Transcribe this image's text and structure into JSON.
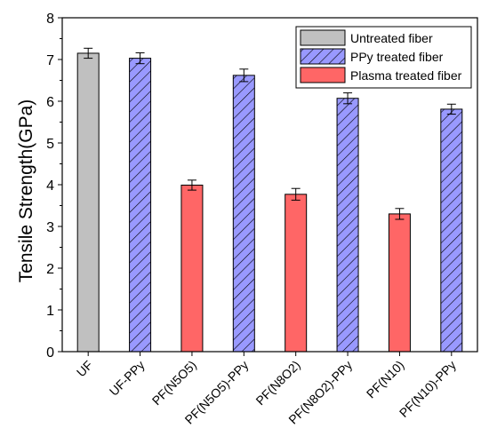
{
  "chart_data": {
    "type": "bar",
    "ylabel": "Tensile Strength(GPa)",
    "xlabel": "",
    "ylim": [
      0,
      8
    ],
    "yticks": [
      0,
      1,
      2,
      3,
      4,
      5,
      6,
      7,
      8
    ],
    "grid": false,
    "legend_position": "top-right",
    "categories": [
      "UF",
      "UF-PPy",
      "PF(N5O5)",
      "PF(N5O5)-PPy",
      "PF(N8O2)",
      "PF(N8O2)-PPy",
      "PF(N10)",
      "PF(N10)-PPy"
    ],
    "values": [
      7.15,
      7.03,
      3.99,
      6.62,
      3.77,
      6.07,
      3.3,
      5.81
    ],
    "errors": [
      0.12,
      0.13,
      0.12,
      0.15,
      0.14,
      0.13,
      0.13,
      0.12
    ],
    "groups": [
      "untreated",
      "ppy",
      "plasma",
      "ppy",
      "plasma",
      "ppy",
      "plasma",
      "ppy"
    ],
    "series": [
      {
        "key": "untreated",
        "name": "Untreated fiber",
        "color": "#c0c0c0",
        "pattern": "solid"
      },
      {
        "key": "ppy",
        "name": "PPy treated fiber",
        "color": "#9999ff",
        "pattern": "hatch"
      },
      {
        "key": "plasma",
        "name": "Plasma treated fiber",
        "color": "#ff6666",
        "pattern": "solid"
      }
    ]
  }
}
